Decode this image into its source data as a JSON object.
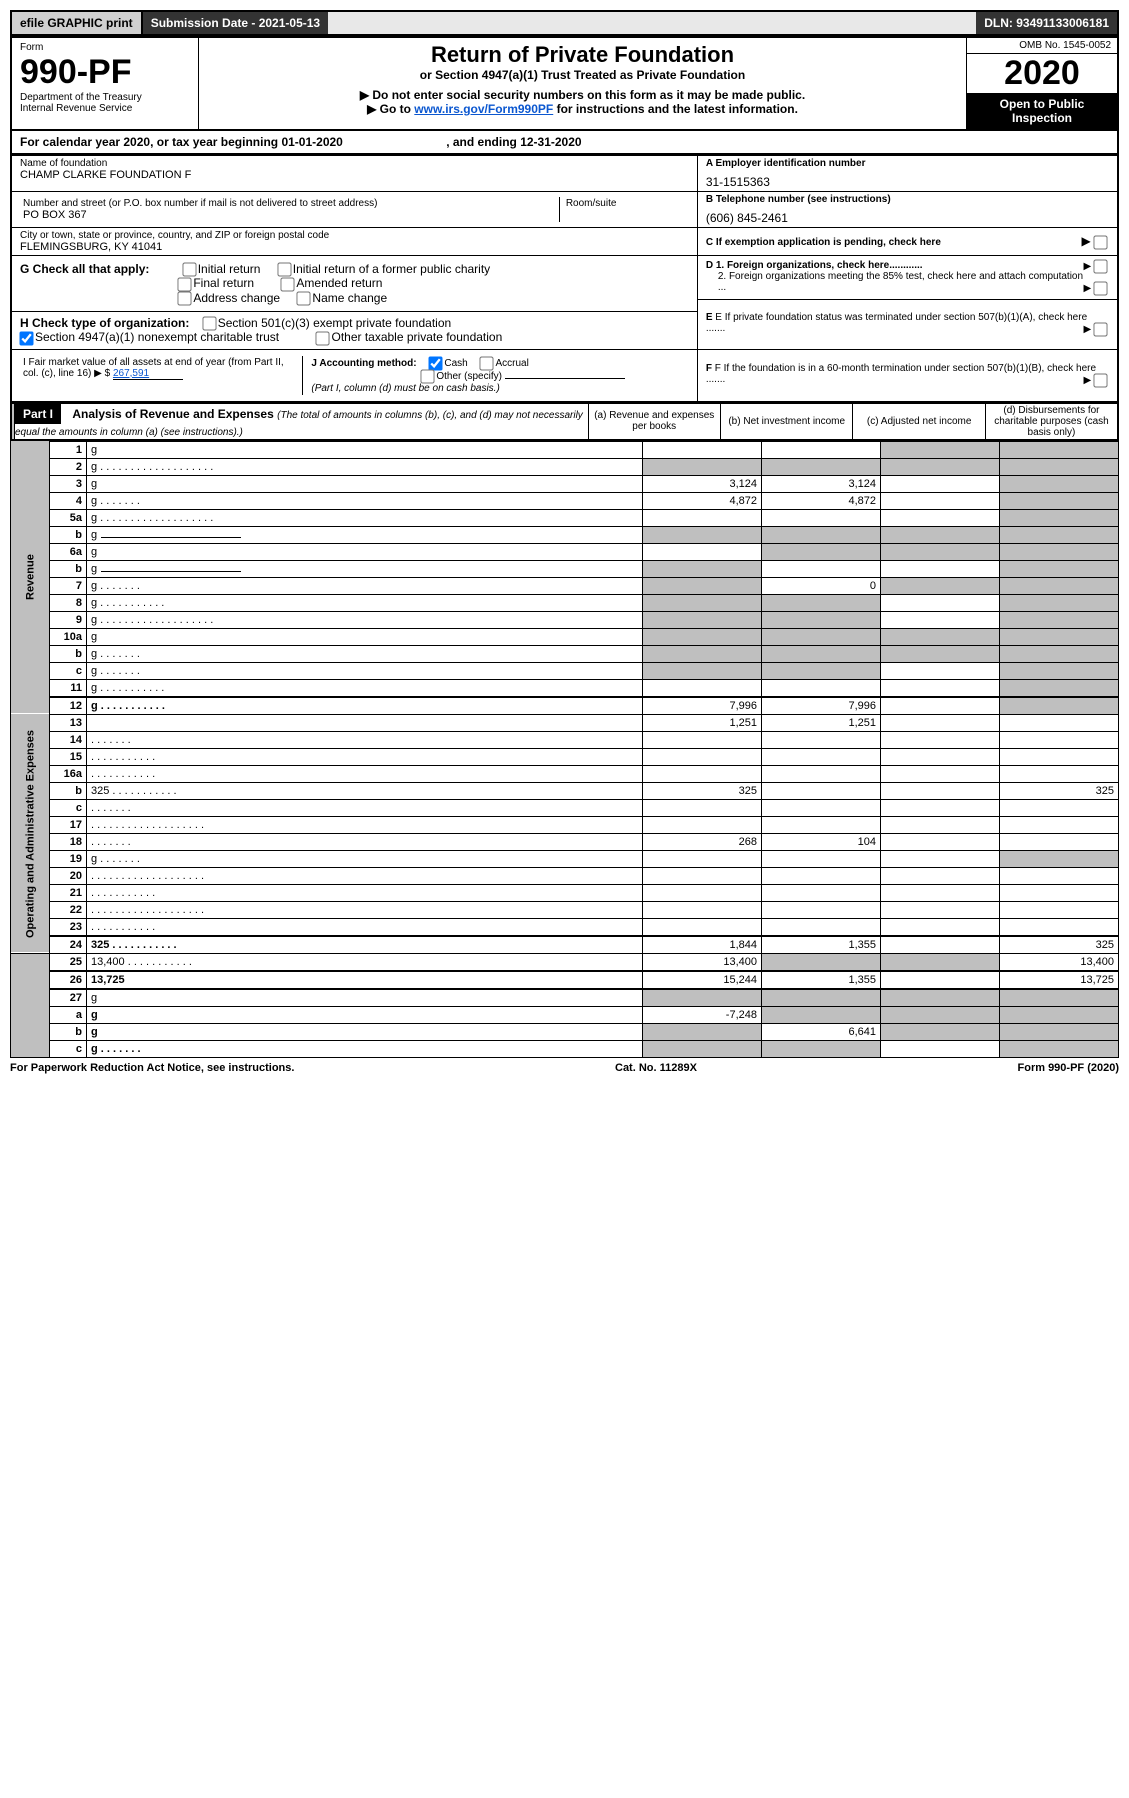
{
  "topbar": {
    "efile": "efile GRAPHIC print",
    "submission": "Submission Date - 2021-05-13",
    "dln": "DLN: 93491133006181"
  },
  "header": {
    "form_word": "Form",
    "form_no": "990-PF",
    "dept": "Department of the Treasury",
    "irs": "Internal Revenue Service",
    "title": "Return of Private Foundation",
    "subtitle": "or Section 4947(a)(1) Trust Treated as Private Foundation",
    "note1": "▶ Do not enter social security numbers on this form as it may be made public.",
    "note2_pre": "▶ Go to ",
    "note2_link": "www.irs.gov/Form990PF",
    "note2_post": " for instructions and the latest information.",
    "omb": "OMB No. 1545-0052",
    "year": "2020",
    "open": "Open to Public Inspection"
  },
  "period": {
    "text_a": "For calendar year 2020, or tax year beginning ",
    "begin": "01-01-2020",
    "text_b": ", and ending ",
    "end": "12-31-2020"
  },
  "entity": {
    "name_label": "Name of foundation",
    "name": "CHAMP CLARKE FOUNDATION F",
    "addr_label": "Number and street (or P.O. box number if mail is not delivered to street address)",
    "room_label": "Room/suite",
    "addr": "PO BOX 367",
    "city_label": "City or town, state or province, country, and ZIP or foreign postal code",
    "city": "FLEMINGSBURG, KY  41041",
    "ein_label": "A Employer identification number",
    "ein": "31-1515363",
    "tel_label": "B Telephone number (see instructions)",
    "tel": "(606) 845-2461",
    "c_label": "C If exemption application is pending, check here",
    "d1": "D 1. Foreign organizations, check here............",
    "d2": "2. Foreign organizations meeting the 85% test, check here and attach computation ...",
    "e": "E If private foundation status was terminated under section 507(b)(1)(A), check here .......",
    "f": "F If the foundation is in a 60-month termination under section 507(b)(1)(B), check here .......",
    "g_label": "G Check all that apply:",
    "g_opts": [
      "Initial return",
      "Initial return of a former public charity",
      "Final return",
      "Amended return",
      "Address change",
      "Name change"
    ],
    "h_label": "H Check type of organization:",
    "h_opts": [
      "Section 501(c)(3) exempt private foundation",
      "Section 4947(a)(1) nonexempt charitable trust",
      "Other taxable private foundation"
    ],
    "i_label_a": "I Fair market value of all assets at end of year (from Part II, col. (c), line 16) ▶ $",
    "i_val": "267,591",
    "j_label": "J Accounting method:",
    "j_opts": [
      "Cash",
      "Accrual",
      "Other (specify)"
    ],
    "j_note": "(Part I, column (d) must be on cash basis.)"
  },
  "part1": {
    "label": "Part I",
    "title": "Analysis of Revenue and Expenses",
    "title_note": " (The total of amounts in columns (b), (c), and (d) may not necessarily equal the amounts in column (a) (see instructions).)",
    "cols": {
      "a": "(a) Revenue and expenses per books",
      "b": "(b) Net investment income",
      "c": "(c) Adjusted net income",
      "d": "(d) Disbursements for charitable purposes (cash basis only)"
    },
    "side_rev": "Revenue",
    "side_exp": "Operating and Administrative Expenses",
    "rows": [
      {
        "n": "1",
        "d": "g",
        "a": "",
        "b": "",
        "c": "g",
        "dots": false
      },
      {
        "n": "2",
        "d": "g",
        "a": "g",
        "b": "g",
        "c": "g",
        "dots": true,
        "bold_not": true
      },
      {
        "n": "3",
        "d": "g",
        "a": "3,124",
        "b": "3,124",
        "c": "",
        "dots": false
      },
      {
        "n": "4",
        "d": "g",
        "a": "4,872",
        "b": "4,872",
        "c": "",
        "dots": true,
        "dots_cls": "dots-short"
      },
      {
        "n": "5a",
        "d": "g",
        "a": "",
        "b": "",
        "c": "",
        "dots": true
      },
      {
        "n": "b",
        "d": "g",
        "a": "g",
        "b": "g",
        "c": "g",
        "dots": false,
        "uline": true
      },
      {
        "n": "6a",
        "d": "g",
        "a": "",
        "b": "g",
        "c": "g",
        "dots": false
      },
      {
        "n": "b",
        "d": "g",
        "a": "g",
        "b": "",
        "c": "",
        "dots": false,
        "uline": true
      },
      {
        "n": "7",
        "d": "g",
        "a": "g",
        "b": "0",
        "c": "g",
        "dots": true,
        "dots_cls": "dots-short"
      },
      {
        "n": "8",
        "d": "g",
        "a": "g",
        "b": "g",
        "c": "",
        "dots": true,
        "dots_cls": "dots-med"
      },
      {
        "n": "9",
        "d": "g",
        "a": "g",
        "b": "g",
        "c": "",
        "dots": true
      },
      {
        "n": "10a",
        "d": "g",
        "a": "g",
        "b": "g",
        "c": "g",
        "dots": false,
        "uline_box": true
      },
      {
        "n": "b",
        "d": "g",
        "a": "g",
        "b": "g",
        "c": "g",
        "dots": true,
        "dots_cls": "dots-short",
        "uline_box": true
      },
      {
        "n": "c",
        "d": "g",
        "a": "g",
        "b": "g",
        "c": "",
        "dots": true,
        "dots_cls": "dots-short"
      },
      {
        "n": "11",
        "d": "g",
        "a": "",
        "b": "",
        "c": "",
        "dots": true,
        "dots_cls": "dots-med"
      },
      {
        "n": "12",
        "d": "g",
        "a": "7,996",
        "b": "7,996",
        "c": "",
        "dots": true,
        "dots_cls": "dots-med",
        "bold": true,
        "sep": true
      },
      {
        "n": "13",
        "d": "",
        "a": "1,251",
        "b": "1,251",
        "c": "",
        "dots": false
      },
      {
        "n": "14",
        "d": "",
        "a": "",
        "b": "",
        "c": "",
        "dots": true,
        "dots_cls": "dots-short"
      },
      {
        "n": "15",
        "d": "",
        "a": "",
        "b": "",
        "c": "",
        "dots": true,
        "dots_cls": "dots-med"
      },
      {
        "n": "16a",
        "d": "",
        "a": "",
        "b": "",
        "c": "",
        "dots": true,
        "dots_cls": "dots-med"
      },
      {
        "n": "b",
        "d": "325",
        "a": "325",
        "b": "",
        "c": "",
        "dots": true,
        "dots_cls": "dots-med"
      },
      {
        "n": "c",
        "d": "",
        "a": "",
        "b": "",
        "c": "",
        "dots": true,
        "dots_cls": "dots-short"
      },
      {
        "n": "17",
        "d": "",
        "a": "",
        "b": "",
        "c": "",
        "dots": true
      },
      {
        "n": "18",
        "d": "",
        "a": "268",
        "b": "104",
        "c": "",
        "dots": true,
        "dots_cls": "dots-short"
      },
      {
        "n": "19",
        "d": "g",
        "a": "",
        "b": "",
        "c": "",
        "dots": true,
        "dots_cls": "dots-short"
      },
      {
        "n": "20",
        "d": "",
        "a": "",
        "b": "",
        "c": "",
        "dots": true
      },
      {
        "n": "21",
        "d": "",
        "a": "",
        "b": "",
        "c": "",
        "dots": true,
        "dots_cls": "dots-med"
      },
      {
        "n": "22",
        "d": "",
        "a": "",
        "b": "",
        "c": "",
        "dots": true
      },
      {
        "n": "23",
        "d": "",
        "a": "",
        "b": "",
        "c": "",
        "dots": true,
        "dots_cls": "dots-med"
      },
      {
        "n": "24",
        "d": "325",
        "a": "1,844",
        "b": "1,355",
        "c": "",
        "dots": true,
        "dots_cls": "dots-med",
        "bold": true,
        "sep": true
      },
      {
        "n": "25",
        "d": "13,400",
        "a": "13,400",
        "b": "g",
        "c": "g",
        "dots": true,
        "dots_cls": "dots-med"
      },
      {
        "n": "26",
        "d": "13,725",
        "a": "15,244",
        "b": "1,355",
        "c": "",
        "dots": false,
        "bold": true,
        "sep": true
      },
      {
        "n": "27",
        "d": "g",
        "a": "g",
        "b": "g",
        "c": "g",
        "sep": true
      },
      {
        "n": "a",
        "d": "g",
        "a": "-7,248",
        "b": "g",
        "c": "g",
        "bold": true
      },
      {
        "n": "b",
        "d": "g",
        "a": "g",
        "b": "6,641",
        "c": "g",
        "bold": true
      },
      {
        "n": "c",
        "d": "g",
        "a": "g",
        "b": "g",
        "c": "",
        "bold": true,
        "dots": true,
        "dots_cls": "dots-short"
      }
    ]
  },
  "footer": {
    "left": "For Paperwork Reduction Act Notice, see instructions.",
    "mid": "Cat. No. 11289X",
    "right": "Form 990-PF (2020)"
  },
  "style": {
    "grey": "#bfbfbf"
  }
}
